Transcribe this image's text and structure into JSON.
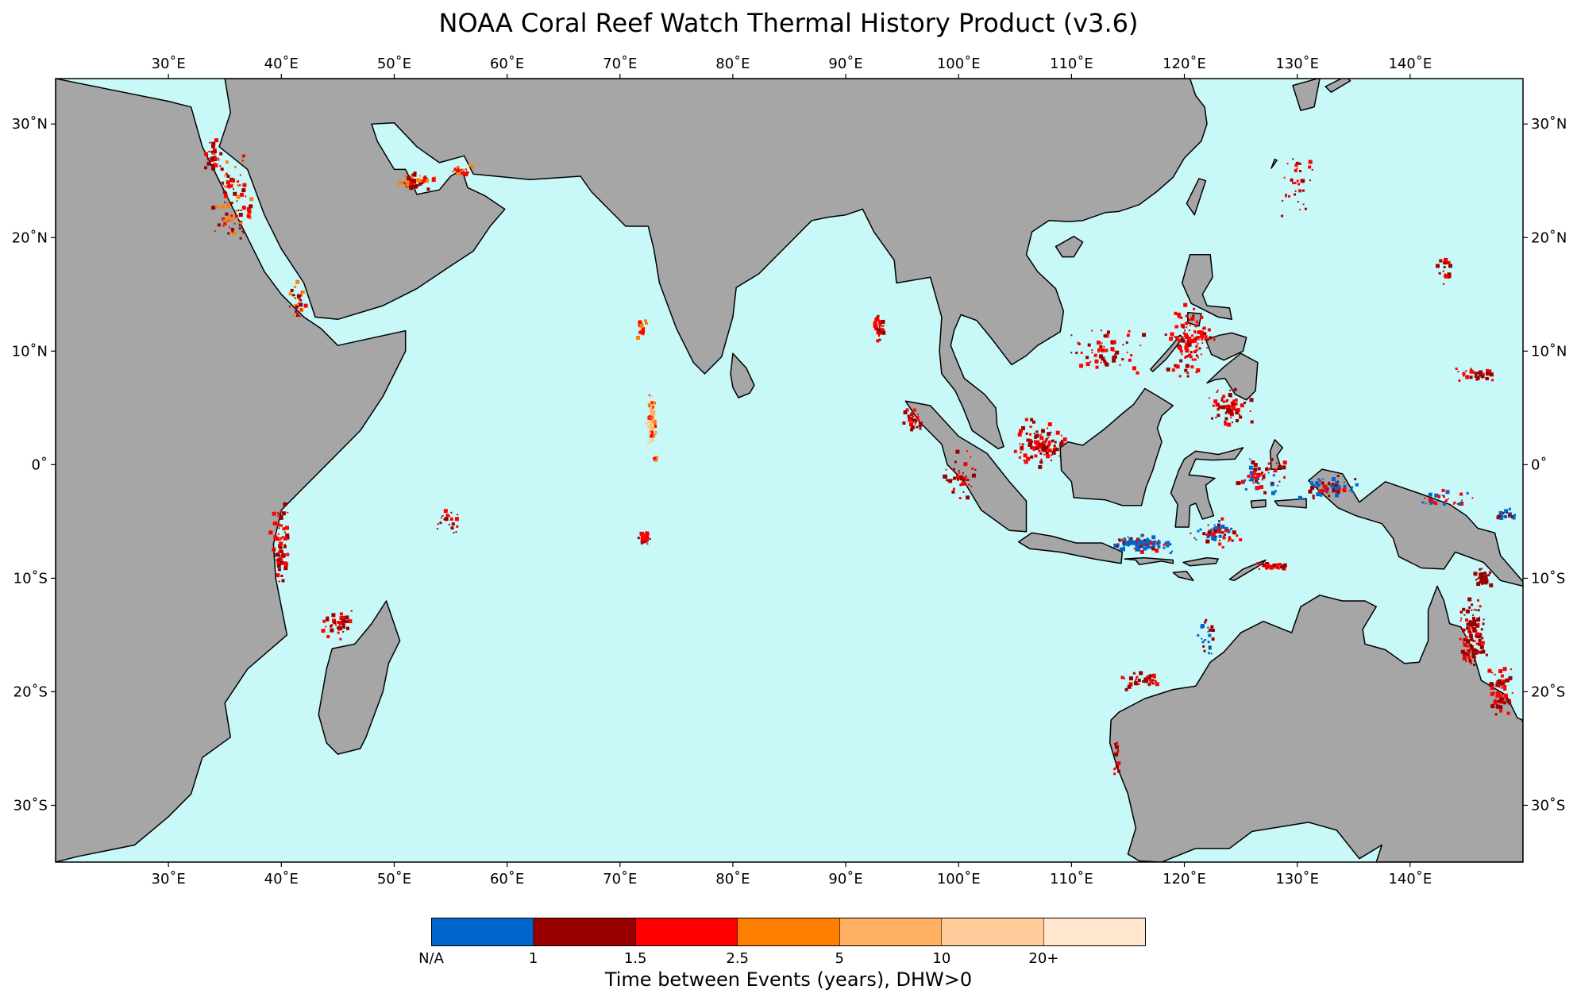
{
  "title": "NOAA Coral Reef Watch Thermal History Product (v3.6)",
  "map": {
    "lon_range": [
      20,
      150
    ],
    "lat_range": [
      -35,
      34
    ],
    "ocean_color": "#c8f8f8",
    "land_color": "#a6a6a6",
    "lon_ticks": [
      {
        "value": 30,
        "label": "30˚E"
      },
      {
        "value": 40,
        "label": "40˚E"
      },
      {
        "value": 50,
        "label": "50˚E"
      },
      {
        "value": 60,
        "label": "60˚E"
      },
      {
        "value": 70,
        "label": "70˚E"
      },
      {
        "value": 80,
        "label": "80˚E"
      },
      {
        "value": 90,
        "label": "90˚E"
      },
      {
        "value": 100,
        "label": "100˚E"
      },
      {
        "value": 110,
        "label": "110˚E"
      },
      {
        "value": 120,
        "label": "120˚E"
      },
      {
        "value": 130,
        "label": "130˚E"
      },
      {
        "value": 140,
        "label": "140˚E"
      }
    ],
    "lat_ticks": [
      {
        "value": 30,
        "label": "30˚N"
      },
      {
        "value": 20,
        "label": "20˚N"
      },
      {
        "value": 10,
        "label": "10˚N"
      },
      {
        "value": 0,
        "label": "0˚"
      },
      {
        "value": -10,
        "label": "10˚S"
      },
      {
        "value": -20,
        "label": "20˚S"
      },
      {
        "value": -30,
        "label": "30˚S"
      }
    ]
  },
  "colorbar": {
    "title": "Time between Events (years), DHW>0",
    "colors": [
      "#0066cc",
      "#990000",
      "#ff0000",
      "#ff8000",
      "#ffb061",
      "#ffcc99",
      "#ffe6cc"
    ],
    "labels": [
      "N/A",
      "1",
      "1.5",
      "2.5",
      "5",
      "10",
      "20+"
    ]
  }
}
